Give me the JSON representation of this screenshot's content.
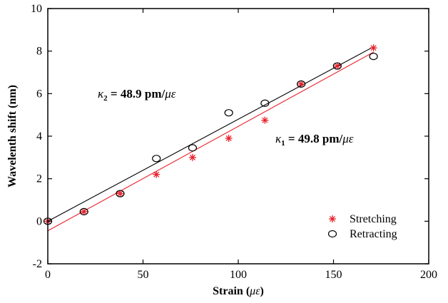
{
  "chart_data": {
    "type": "scatter",
    "xlabel": "Strain (",
    "xlabel_unit": "με",
    "xlabel_close": ")",
    "ylabel": "Wavelenth shift (nm)",
    "xlim": [
      0,
      200
    ],
    "ylim": [
      -2,
      10
    ],
    "x_ticks": [
      0,
      50,
      100,
      150,
      200
    ],
    "y_ticks": [
      -2,
      0,
      2,
      4,
      6,
      8,
      10
    ],
    "grid": false,
    "legend_position": "bottom-right",
    "series": [
      {
        "name": "Stretching",
        "marker": "asterisk",
        "color": "#e8202a",
        "x": [
          0,
          19,
          38,
          57,
          76,
          95,
          114,
          133,
          152,
          171
        ],
        "y": [
          0.0,
          0.45,
          1.3,
          2.2,
          3.0,
          3.9,
          4.75,
          6.45,
          7.3,
          8.15
        ]
      },
      {
        "name": "Retracting",
        "marker": "circle",
        "color": "#000000",
        "x": [
          0,
          19,
          38,
          57,
          76,
          95,
          114,
          133,
          152,
          171
        ],
        "y": [
          0.0,
          0.45,
          1.3,
          2.95,
          3.45,
          5.1,
          5.55,
          6.45,
          7.3,
          7.75
        ]
      }
    ],
    "fit_lines": [
      {
        "color": "#000000",
        "x": [
          0,
          171
        ],
        "y": [
          0.0,
          8.2
        ]
      },
      {
        "color": "#e8202a",
        "x": [
          0,
          171
        ],
        "y": [
          -0.45,
          7.95
        ]
      }
    ],
    "annotations": [
      {
        "symbol": "κ",
        "subscript": "2",
        "text": " = 48.9 pm/",
        "unit": "με"
      },
      {
        "symbol": "κ",
        "subscript": "1",
        "text": " = 49.8 pm/",
        "unit": "με"
      }
    ]
  }
}
